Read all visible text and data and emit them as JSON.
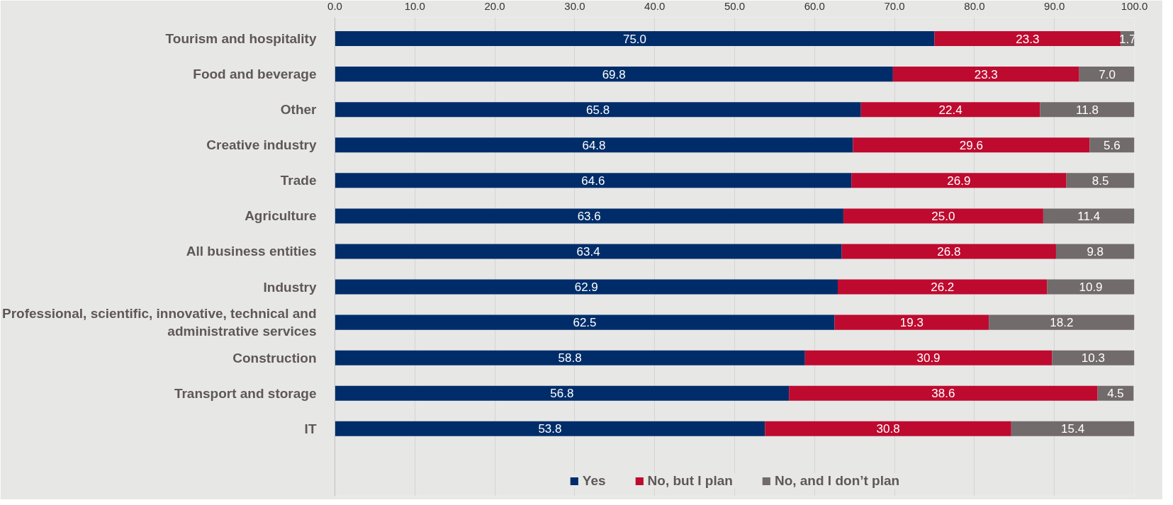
{
  "chart_data": {
    "type": "bar",
    "orientation": "horizontal",
    "stacked": true,
    "categories": [
      "Tourism and hospitality",
      "Food and beverage",
      "Other",
      "Creative industry",
      "Trade",
      "Agriculture",
      "All business entities",
      "Industry",
      "Professional, scientific, innovative, technical and administrative services",
      "Construction",
      "Transport and storage",
      "IT"
    ],
    "series": [
      {
        "name": "Yes",
        "color": "#002d6a",
        "values": [
          75.0,
          69.8,
          65.8,
          64.8,
          64.6,
          63.6,
          63.4,
          62.9,
          62.5,
          58.8,
          56.8,
          53.8
        ],
        "value_labels": [
          "75.0",
          "69.8",
          "65.8",
          "64.8",
          "64.6",
          "63.6",
          "63.4",
          "62.9",
          "62.5",
          "58.8",
          "56.8",
          "53.8"
        ]
      },
      {
        "name": "No, but I plan",
        "color": "#be0a2f",
        "values": [
          23.3,
          23.3,
          22.4,
          29.6,
          26.9,
          25.0,
          26.8,
          26.2,
          19.3,
          30.9,
          38.6,
          30.8
        ],
        "value_labels": [
          "23.3",
          "23.3",
          "22.4",
          "29.6",
          "26.9",
          "25.0",
          "26.8",
          "26.2",
          "19.3",
          "30.9",
          "38.6",
          "30.8"
        ]
      },
      {
        "name": "No, and I don’t plan",
        "color": "#726b6b",
        "values": [
          1.7,
          7.0,
          11.8,
          5.6,
          8.5,
          11.4,
          9.8,
          10.9,
          18.2,
          10.3,
          4.5,
          15.4
        ],
        "value_labels": [
          "1.7",
          "7.0",
          "11.8",
          "5.6",
          "8.5",
          "11.4",
          "9.8",
          "10.9",
          "18.2",
          "10.3",
          "4.5",
          "15.4"
        ]
      }
    ],
    "xlim": [
      0,
      100
    ],
    "xticks": [
      {
        "value": 0,
        "label": "0.0"
      },
      {
        "value": 10,
        "label": "10.0"
      },
      {
        "value": 20,
        "label": "20.0"
      },
      {
        "value": 30,
        "label": "30.0"
      },
      {
        "value": 40,
        "label": "40.0"
      },
      {
        "value": 50,
        "label": "50.0"
      },
      {
        "value": 60,
        "label": "60.0"
      },
      {
        "value": 70,
        "label": "70.0"
      },
      {
        "value": 80,
        "label": "80.0"
      },
      {
        "value": 90,
        "label": "90.0"
      },
      {
        "value": 100,
        "label": "100.0"
      }
    ],
    "grid": "x",
    "legend": "bottom"
  }
}
